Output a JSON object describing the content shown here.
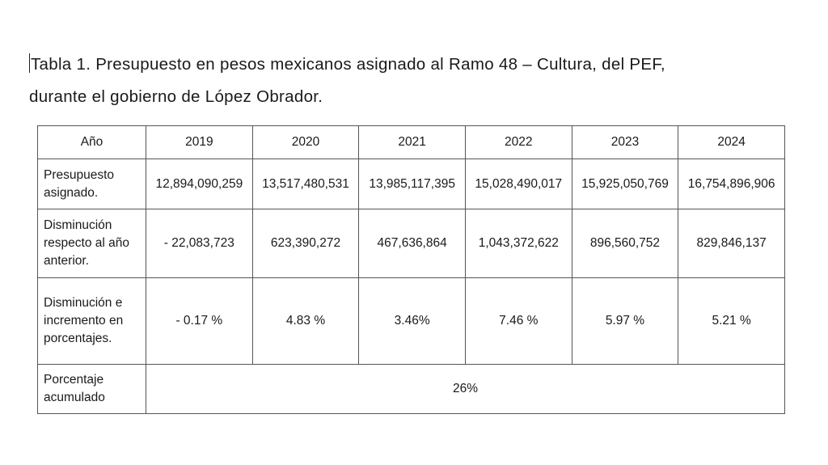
{
  "caption": {
    "line1": "Tabla 1. Presupuesto en pesos mexicanos asignado al Ramo 48 – Cultura, del PEF,",
    "line2": "durante el gobierno de López Obrador."
  },
  "table": {
    "header": [
      "Año",
      "2019",
      "2020",
      "2021",
      "2022",
      "2023",
      "2024"
    ],
    "rows": [
      {
        "label": "Presupuesto asignado.",
        "values": [
          "12,894,090,259",
          "13,517,480,531",
          "13,985,117,395",
          "15,028,490,017",
          "15,925,050,769",
          "16,754,896,906"
        ]
      },
      {
        "label": "Disminución respecto al año anterior.",
        "values": [
          "- 22,083,723",
          "623,390,272",
          "467,636,864",
          "1,043,372,622",
          "896,560,752",
          "829,846,137"
        ]
      },
      {
        "label": "Disminución e incremento en porcentajes.",
        "values": [
          "- 0.17 %",
          "4.83 %",
          "3.46%",
          "7.46 %",
          "5.97 %",
          "5.21 %"
        ]
      }
    ],
    "accumulated": {
      "label": "Porcentaje acumulado",
      "value": "26%"
    }
  }
}
